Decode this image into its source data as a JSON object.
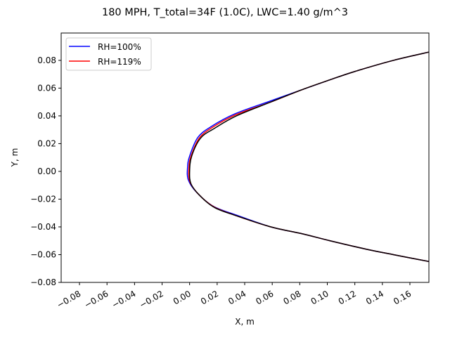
{
  "chart_data": {
    "type": "line",
    "title": "180 MPH, T_total=34F (1.0C), LWC=1.40 g/m^3",
    "xlabel": "X, m",
    "ylabel": "Y, m",
    "xlim": [
      -0.0933,
      0.1738
    ],
    "ylim": [
      -0.08,
      0.0997
    ],
    "xticks": [
      "-0.08",
      "-0.06",
      "-0.04",
      "-0.02",
      "0.00",
      "0.02",
      "0.04",
      "0.06",
      "0.08",
      "0.10",
      "0.12",
      "0.14",
      "0.16"
    ],
    "yticks": [
      "-0.08",
      "-0.06",
      "-0.04",
      "-0.02",
      "0.00",
      "0.02",
      "0.04",
      "0.06",
      "0.08"
    ],
    "grid": false,
    "legend_position": "top-left",
    "series": [
      {
        "name": "RH=100%",
        "color": "#0000ff",
        "x": [
          0.174,
          0.148,
          0.128,
          0.102,
          0.082,
          0.059,
          0.034,
          0.017,
          0.005,
          -0.001,
          -0.0015,
          0.0,
          0.006,
          0.016,
          0.033,
          0.058,
          0.082,
          0.102,
          0.12,
          0.148,
          0.174
        ],
        "y": [
          -0.065,
          -0.06,
          -0.056,
          -0.05,
          -0.045,
          -0.04,
          -0.0315,
          -0.025,
          -0.015,
          -0.006,
          0.003,
          0.011,
          0.0245,
          0.0325,
          0.0415,
          0.0505,
          0.059,
          0.066,
          0.072,
          0.08,
          0.086
        ]
      },
      {
        "name": "RH=119%",
        "color": "#ff0000",
        "x": [
          0.174,
          0.148,
          0.128,
          0.102,
          0.082,
          0.059,
          0.034,
          0.0175,
          0.006,
          0.0,
          -0.0005,
          0.001,
          0.007,
          0.017,
          0.034,
          0.059,
          0.082,
          0.102,
          0.12,
          0.148,
          0.174
        ],
        "y": [
          -0.065,
          -0.06,
          -0.056,
          -0.05,
          -0.045,
          -0.04,
          -0.032,
          -0.0255,
          -0.016,
          -0.007,
          0.003,
          0.011,
          0.024,
          0.032,
          0.041,
          0.05,
          0.059,
          0.066,
          0.072,
          0.08,
          0.086
        ]
      },
      {
        "color": "#000000",
        "x": [
          0.174,
          0.148,
          0.128,
          0.102,
          0.082,
          0.059,
          0.034,
          0.018,
          0.007,
          0.001,
          0.0,
          0.0015,
          0.008,
          0.018,
          0.034,
          0.059,
          0.082,
          0.102,
          0.12,
          0.148,
          0.174
        ],
        "y": [
          -0.065,
          -0.06,
          -0.056,
          -0.05,
          -0.045,
          -0.04,
          -0.032,
          -0.026,
          -0.017,
          -0.009,
          0.0,
          0.011,
          0.024,
          0.031,
          0.04,
          0.05,
          0.059,
          0.066,
          0.072,
          0.08,
          0.086
        ]
      }
    ]
  }
}
